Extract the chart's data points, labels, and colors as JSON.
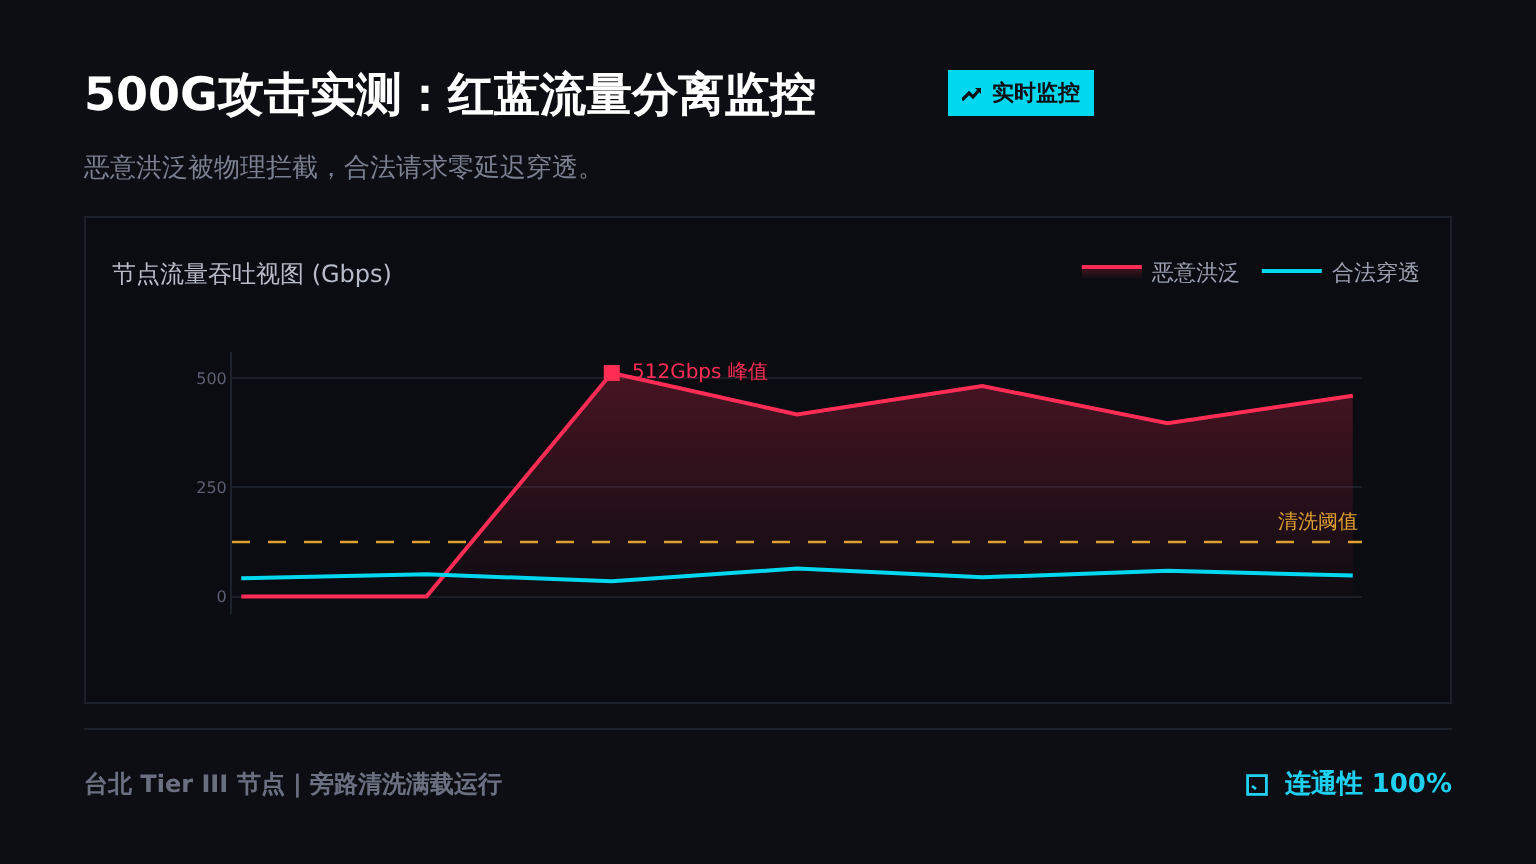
{
  "chart_data": {
    "type": "line",
    "title": "500G攻击实测：红蓝流量分离监控",
    "subtitle": "恶意洪泛被物理拦截，合法请求零延迟穿透。",
    "annotations": [
      "512Gbps 峰值",
      "节点流量吞吐视图 (Gbps)",
      "实时监控",
      "台北 Tier III 节点 | 旁路清洗满载运行",
      "连通性 100%"
    ],
    "categories": [
      null,
      null,
      null,
      null,
      null,
      null,
      null
    ],
    "series": [
      {
        "name": "恶意洪泛",
        "type": "area",
        "color": "#ff2d55",
        "values": [
          0,
          0,
          512,
          417,
          482,
          397,
          460
        ]
      },
      {
        "name": "合法穿透",
        "color": "#00d8f0",
        "values": [
          42,
          51,
          35,
          64,
          44,
          59,
          48
        ]
      }
    ],
    "ylim": [
      -40,
      560
    ],
    "yticks": [
      0,
      250,
      500
    ],
    "tick_labels": "y",
    "grid": "y",
    "legend": "top right",
    "ref_lines": [
      {
        "axis": "y",
        "value": 125,
        "label": "清洗阈值",
        "color": "#e0a030",
        "line_style": "dashed"
      }
    ]
  }
}
